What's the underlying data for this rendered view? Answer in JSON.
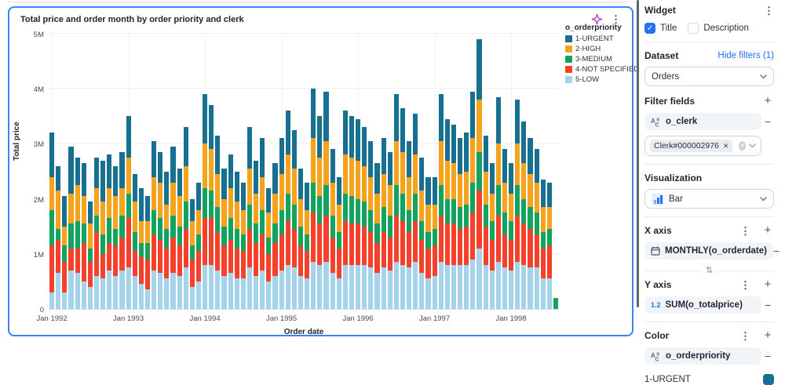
{
  "chart": {
    "title": "Total price and order month by order priority and clerk",
    "ylabel": "Total price",
    "xlabel": "Order date",
    "legend_title": "o_orderpriority"
  },
  "chart_data": {
    "type": "bar",
    "stacked": true,
    "title": "Total price and order month by order priority and clerk",
    "xlabel": "Order date",
    "ylabel": "Total price",
    "unit": "millions",
    "ylim": [
      0,
      5
    ],
    "y_tick_values": [
      0,
      1,
      2,
      3,
      4,
      5
    ],
    "y_tick_labels": [
      "0",
      "1M",
      "2M",
      "3M",
      "4M",
      "5M"
    ],
    "x_tick_indices": [
      0,
      12,
      24,
      36,
      48,
      60,
      72
    ],
    "x_tick_labels": [
      "Jan 1992",
      "Jan 1993",
      "Jan 1994",
      "Jan 1995",
      "Jan 1996",
      "Jan 1997",
      "Jan 1998"
    ],
    "legend_position": "top-right",
    "grid": true,
    "categories": [
      "Jan 1992",
      "Feb 1992",
      "Mar 1992",
      "Apr 1992",
      "May 1992",
      "Jun 1992",
      "Jul 1992",
      "Aug 1992",
      "Sep 1992",
      "Oct 1992",
      "Nov 1992",
      "Dec 1992",
      "Jan 1993",
      "Feb 1993",
      "Mar 1993",
      "Apr 1993",
      "May 1993",
      "Jun 1993",
      "Jul 1993",
      "Aug 1993",
      "Sep 1993",
      "Oct 1993",
      "Nov 1993",
      "Dec 1993",
      "Jan 1994",
      "Feb 1994",
      "Mar 1994",
      "Apr 1994",
      "May 1994",
      "Jun 1994",
      "Jul 1994",
      "Aug 1994",
      "Sep 1994",
      "Oct 1994",
      "Nov 1994",
      "Dec 1994",
      "Jan 1995",
      "Feb 1995",
      "Mar 1995",
      "Apr 1995",
      "May 1995",
      "Jun 1995",
      "Jul 1995",
      "Aug 1995",
      "Sep 1995",
      "Oct 1995",
      "Nov 1995",
      "Dec 1995",
      "Jan 1996",
      "Feb 1996",
      "Mar 1996",
      "Apr 1996",
      "May 1996",
      "Jun 1996",
      "Jul 1996",
      "Aug 1996",
      "Sep 1996",
      "Oct 1996",
      "Nov 1996",
      "Dec 1996",
      "Jan 1997",
      "Feb 1997",
      "Mar 1997",
      "Apr 1997",
      "May 1997",
      "Jun 1997",
      "Jul 1997",
      "Aug 1997",
      "Sep 1997",
      "Oct 1997",
      "Nov 1997",
      "Dec 1997",
      "Jan 1998",
      "Feb 1998",
      "Mar 1998",
      "Apr 1998",
      "May 1998",
      "Jun 1998",
      "Jul 1998",
      "Aug 1998"
    ],
    "series": [
      {
        "name": "1-URGENT",
        "color": "#17708f",
        "values": [
          0.8,
          0.45,
          0.55,
          0.85,
          0.5,
          0.6,
          0.4,
          0.55,
          0.75,
          0.6,
          0.55,
          0.65,
          0.75,
          0.5,
          0.6,
          0.45,
          0.65,
          0.55,
          0.6,
          0.65,
          0.5,
          0.7,
          0.4,
          0.5,
          0.9,
          0.8,
          0.7,
          0.55,
          0.6,
          0.55,
          0.5,
          0.75,
          0.6,
          0.7,
          0.45,
          0.55,
          0.65,
          0.8,
          0.7,
          0.55,
          0.5,
          0.9,
          0.75,
          0.9,
          0.6,
          0.5,
          0.8,
          0.75,
          0.75,
          0.7,
          0.65,
          0.55,
          0.65,
          0.6,
          0.85,
          0.8,
          0.65,
          0.75,
          0.6,
          0.5,
          0.5,
          0.85,
          0.75,
          0.7,
          0.65,
          0.7,
          0.85,
          1.1,
          0.65,
          0.55,
          0.85,
          0.6,
          0.55,
          0.8,
          0.75,
          0.65,
          0.6,
          0.5,
          0.45,
          0
        ]
      },
      {
        "name": "2-HIGH",
        "color": "#f5a31c",
        "values": [
          0.6,
          0.7,
          0.35,
          0.55,
          0.65,
          0.5,
          0.45,
          0.5,
          0.6,
          0.55,
          0.6,
          0.5,
          0.65,
          0.55,
          0.4,
          0.4,
          0.6,
          0.65,
          0.45,
          0.6,
          0.55,
          0.65,
          0.45,
          0.45,
          0.8,
          0.75,
          0.6,
          0.5,
          0.55,
          0.5,
          0.45,
          0.65,
          0.55,
          0.6,
          0.45,
          0.55,
          0.65,
          0.7,
          0.65,
          0.5,
          0.45,
          0.8,
          0.7,
          0.8,
          0.6,
          0.5,
          0.7,
          0.7,
          0.7,
          0.65,
          0.6,
          0.55,
          0.6,
          0.55,
          0.8,
          0.75,
          0.6,
          0.7,
          0.55,
          0.5,
          0.45,
          0.8,
          0.7,
          0.65,
          0.6,
          0.6,
          0.8,
          0.95,
          0.6,
          0.5,
          0.75,
          0.55,
          0.5,
          0.75,
          0.65,
          0.6,
          0.55,
          0.45,
          0.4,
          0
        ]
      },
      {
        "name": "3-MEDIUM",
        "color": "#12a35f",
        "values": [
          0.65,
          0.2,
          0.3,
          0.45,
          0.5,
          0.35,
          0.25,
          0.3,
          0.35,
          0.45,
          0.3,
          0.4,
          0.45,
          0.35,
          0.25,
          0.3,
          0.45,
          0.4,
          0.35,
          0.4,
          0.35,
          0.5,
          0.25,
          0.3,
          0.55,
          0.5,
          0.45,
          0.35,
          0.4,
          0.35,
          0.3,
          0.45,
          0.35,
          0.45,
          0.3,
          0.35,
          0.45,
          0.5,
          0.45,
          0.35,
          0.3,
          0.55,
          0.5,
          0.55,
          0.4,
          0.3,
          0.5,
          0.5,
          0.45,
          0.45,
          0.4,
          0.35,
          0.45,
          0.4,
          0.55,
          0.5,
          0.4,
          0.5,
          0.35,
          0.3,
          0.3,
          0.55,
          0.45,
          0.45,
          0.4,
          0.4,
          0.55,
          0.7,
          0.4,
          0.35,
          0.55,
          0.4,
          0.35,
          0.55,
          0.45,
          0.4,
          0.4,
          0.3,
          0.3,
          0.2
        ]
      },
      {
        "name": "4-NOT SPECIFIED",
        "color": "#f5402c",
        "values": [
          0.85,
          0.6,
          0.55,
          0.4,
          0.45,
          0.7,
          0.45,
          0.8,
          0.45,
          0.5,
          0.55,
          0.6,
          0.9,
          0.45,
          0.5,
          0.55,
          0.65,
          0.6,
          0.55,
          0.65,
          0.55,
          0.7,
          0.5,
          0.55,
          0.85,
          0.85,
          0.7,
          0.55,
          0.6,
          0.55,
          0.5,
          0.7,
          0.6,
          0.65,
          0.5,
          0.6,
          0.65,
          0.8,
          0.7,
          0.55,
          0.5,
          0.9,
          0.75,
          0.85,
          0.65,
          0.55,
          0.8,
          0.75,
          0.75,
          0.7,
          0.65,
          0.55,
          0.65,
          0.6,
          0.85,
          0.8,
          0.65,
          0.75,
          0.6,
          0.55,
          0.55,
          0.85,
          0.75,
          0.75,
          0.65,
          0.7,
          0.85,
          1.05,
          0.7,
          0.55,
          0.85,
          0.6,
          0.55,
          0.85,
          0.75,
          0.7,
          0.6,
          0.55,
          0.6,
          0
        ]
      },
      {
        "name": "5-LOW",
        "color": "#a5d3e9",
        "values": [
          0.3,
          0.65,
          0.3,
          0.7,
          0.65,
          0.5,
          0.4,
          0.6,
          0.55,
          0.7,
          0.6,
          0.7,
          0.75,
          0.6,
          0.45,
          0.35,
          0.7,
          0.65,
          0.55,
          0.65,
          0.6,
          0.75,
          0.4,
          0.5,
          0.8,
          0.8,
          0.7,
          0.6,
          0.65,
          0.55,
          0.55,
          0.75,
          0.6,
          0.7,
          0.5,
          0.6,
          0.7,
          0.8,
          0.75,
          0.6,
          0.55,
          0.85,
          0.8,
          0.85,
          0.65,
          0.55,
          0.8,
          0.8,
          0.8,
          0.8,
          0.75,
          0.65,
          0.75,
          0.7,
          0.85,
          0.8,
          0.75,
          0.85,
          0.65,
          0.55,
          0.6,
          0.85,
          0.8,
          0.8,
          0.8,
          0.8,
          0.9,
          1.1,
          0.8,
          0.7,
          0.85,
          0.75,
          0.7,
          0.85,
          0.8,
          0.75,
          0.75,
          0.55,
          0.55,
          0
        ]
      }
    ]
  },
  "panel": {
    "title": "Widget",
    "checkboxes": {
      "title_label": "Title",
      "description_label": "Description"
    },
    "dataset": {
      "label": "Dataset",
      "hide_filters_link": "Hide filters (1)",
      "selected": "Orders"
    },
    "filter_fields": {
      "label": "Filter fields",
      "field": "o_clerk",
      "chip": "Clerk#000002976"
    },
    "visualization": {
      "label": "Visualization",
      "selected": "Bar"
    },
    "x_axis": {
      "label": "X axis",
      "field": "MONTHLY(o_orderdate)"
    },
    "y_axis": {
      "label": "Y axis",
      "field": "SUM(o_totalprice)"
    },
    "color": {
      "label": "Color",
      "field": "o_orderpriority",
      "first_value": "1-URGENT",
      "first_value_color": "#17708f"
    }
  },
  "colors": {
    "card_border": "#3b82f6",
    "accent_blue": "#2472f2",
    "link_blue": "#2570f5"
  }
}
